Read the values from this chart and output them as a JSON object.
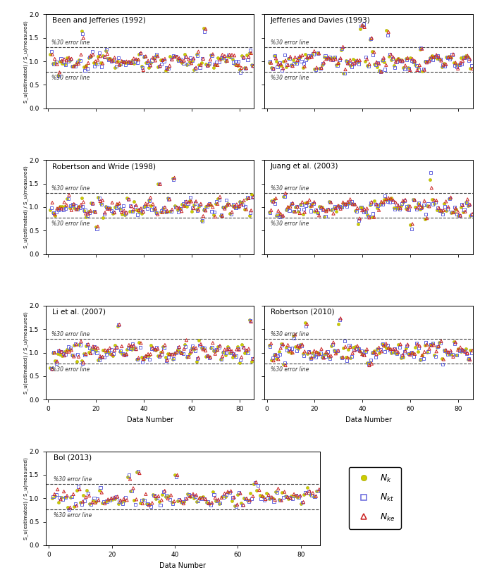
{
  "titles": [
    "Been and Jefferies (1992)",
    "Jefferies and Davies (1993)",
    "Robertson and Wride (1998)",
    "Juang et al. (2003)",
    "Li et al. (2007)",
    "Robertson (2010)",
    "Bol (2013)"
  ],
  "ylim": [
    0.0,
    2.0
  ],
  "xlim": [
    -1,
    86
  ],
  "yticks": [
    0.0,
    0.5,
    1.0,
    1.5,
    2.0
  ],
  "xticks": [
    0,
    20,
    40,
    60,
    80
  ],
  "error_line_upper": 1.3,
  "error_line_lower": 0.77,
  "ylabel": "S_u(estimated) / S_u(measured)",
  "xlabel": "Data Number",
  "error_label": "%30 error line",
  "color_Nk": "#cccc00",
  "color_Nkt_edge": "#6666dd",
  "color_Nke_edge": "#cc2222",
  "legend_labels": [
    "$N_k$",
    "$N_{kt}$",
    "$N_{ke}$"
  ],
  "figsize": [
    6.81,
    8.19
  ],
  "dpi": 100
}
